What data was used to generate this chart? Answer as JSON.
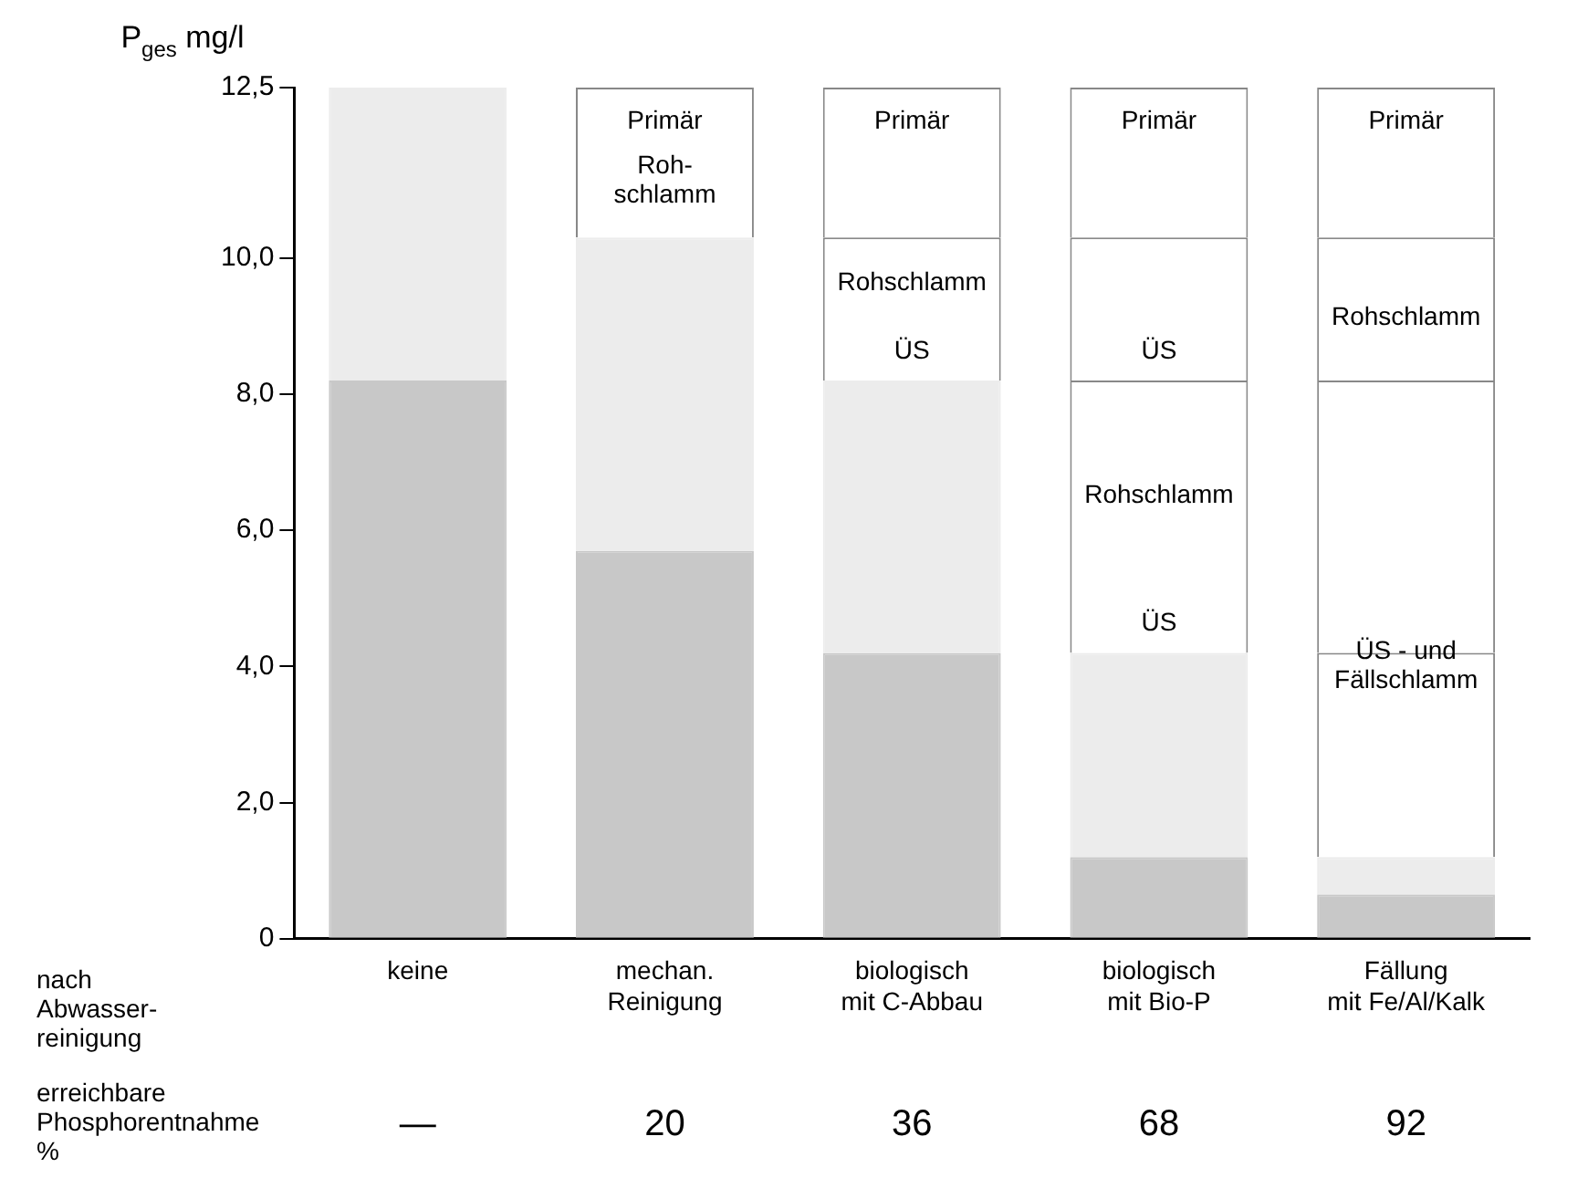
{
  "chart_data": {
    "type": "bar",
    "stacked": true,
    "ylabel": "P$_{ges}$ mg/l",
    "xlabel": "nach Abwasser- reinigung",
    "categories": [
      "keine",
      "mechan. Reinigung",
      "biologisch mit C-Abbau",
      "biologisch mit Bio-P",
      "Fällung mit Fe/Al/Kalk"
    ],
    "series": [
      {
        "color": "#c8c8c8",
        "values": [
          8.2,
          5.7,
          4.2,
          1.2,
          0.65
        ]
      },
      {
        "color": "#ececec",
        "values": [
          4.3,
          4.6,
          4.0,
          3.0,
          0.55
        ]
      },
      {
        "color": "#ffffff",
        "values": [
          null,
          null,
          null,
          null,
          3.0
        ]
      },
      {
        "color": "#ffffff",
        "values": [
          null,
          null,
          null,
          4.0,
          4.0
        ]
      },
      {
        "color": "#ffffff",
        "values": [
          null,
          null,
          2.1,
          2.1,
          2.1
        ]
      },
      {
        "color": "#ffffff",
        "values": [
          null,
          2.2,
          2.2,
          2.2,
          2.2
        ]
      }
    ],
    "ylim": [
      0,
      12.5
    ],
    "yticks": [
      0,
      {
        "value": 2,
        "label": "2,0"
      },
      {
        "value": 4,
        "label": "4,0"
      },
      {
        "value": 6,
        "label": "6,0"
      },
      {
        "value": 8,
        "label": "8,0"
      },
      {
        "value": 10,
        "label": "10,0"
      },
      {
        "value": 12.5,
        "label": "12,5"
      }
    ],
    "grid": false,
    "legend": false,
    "annotations": [
      "Primär",
      "Roh- schlamm",
      "Primär",
      "Rohschlamm",
      "ÜS",
      "Primär",
      "ÜS",
      "Rohschlamm",
      "ÜS",
      "Primär",
      "Rohschlamm",
      "ÜS - und Fällschlamm",
      "erreichbare Phosphorentnahme %",
      "—",
      "20",
      "36",
      "68",
      "92"
    ]
  }
}
